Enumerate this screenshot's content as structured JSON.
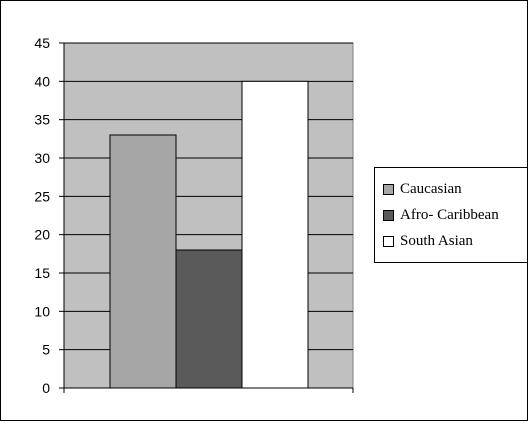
{
  "chart_data": {
    "type": "bar",
    "categories": [
      ""
    ],
    "series": [
      {
        "name": "Caucasian",
        "values": [
          33
        ],
        "color": "#a6a6a6"
      },
      {
        "name": "Afro- Caribbean",
        "values": [
          18
        ],
        "color": "#5a5a5a"
      },
      {
        "name": "South Asian",
        "values": [
          40
        ],
        "color": "#ffffff"
      }
    ],
    "title": "",
    "xlabel": "",
    "ylabel": "",
    "ylim": [
      0,
      45
    ],
    "yticks": [
      0,
      5,
      10,
      15,
      20,
      25,
      30,
      35,
      40,
      45
    ],
    "grid": true,
    "plot_background": "#c0c0c0",
    "legend_position": "right"
  }
}
